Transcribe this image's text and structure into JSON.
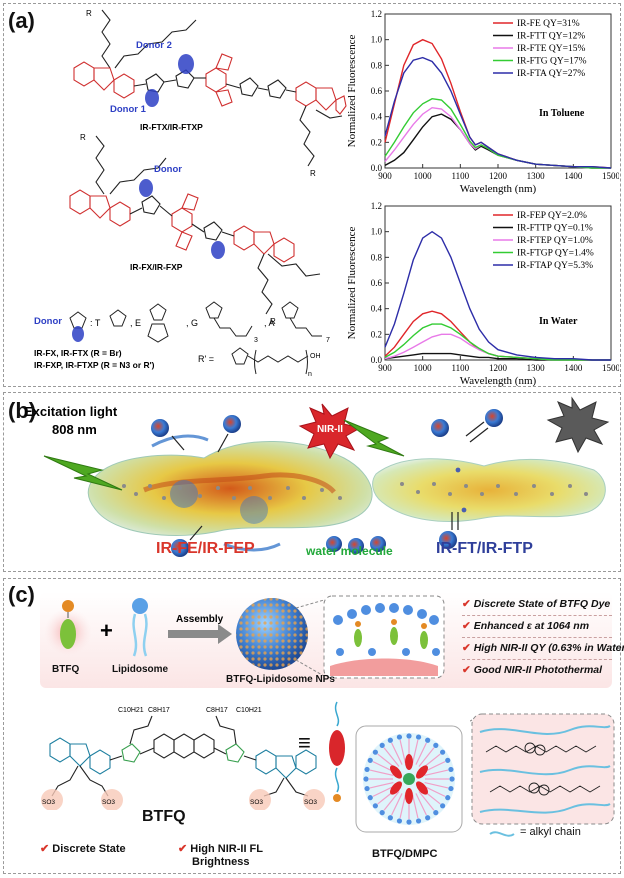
{
  "panel_a": {
    "label": "(a)",
    "struct1": {
      "donor2": "Donor 2",
      "donor1": "Donor 1",
      "name": "IR-FTX/IR-FTXP",
      "r_top": "R",
      "r_bottom": "R"
    },
    "struct2": {
      "donor": "Donor",
      "name": "IR-FX/IR-FXP",
      "r_top": "R",
      "r_bottom": "R"
    },
    "donor_legend": {
      "donor": "Donor",
      "t": ": T",
      "e": ", E",
      "g": ", G",
      "a": ", A",
      "sub3": "3",
      "sub7": "7"
    },
    "notes": {
      "line1": "IR-FX, IR-FTX (R = Br)",
      "line2": "IR-FXP, IR-FTXP (R = N3 or R')",
      "rprime": "R' =",
      "n": "n",
      "oh": "OH"
    }
  },
  "chart_data": [
    {
      "type": "line",
      "xlabel": "Wavelength (nm)",
      "ylabel": "Normalized  Fluorescence",
      "xlim": [
        900,
        1500
      ],
      "ylim": [
        0,
        1.2
      ],
      "xticks": [
        900,
        1000,
        1100,
        1200,
        1300,
        1400,
        1500
      ],
      "yticks": [
        "0.0",
        "0.2",
        "0.4",
        "0.6",
        "0.8",
        "1.0",
        "1.2"
      ],
      "annotation": "In Toluene",
      "legend_position": "top-right",
      "x": [
        900,
        925,
        950,
        975,
        1000,
        1025,
        1050,
        1075,
        1100,
        1125,
        1140,
        1155,
        1175,
        1200,
        1250,
        1300,
        1350,
        1400,
        1450,
        1500
      ],
      "series": [
        {
          "name": "IR-FE  QY=31%",
          "color": "#e0262a",
          "values": [
            0.2,
            0.5,
            0.8,
            0.96,
            1.0,
            0.97,
            0.85,
            0.66,
            0.44,
            0.24,
            0.18,
            0.2,
            0.16,
            0.11,
            0.06,
            0.03,
            0.02,
            0.01,
            0.01,
            0.0
          ]
        },
        {
          "name": "IR-FTT  QY=12%",
          "color": "#111111",
          "values": [
            0.02,
            0.06,
            0.12,
            0.22,
            0.32,
            0.4,
            0.42,
            0.38,
            0.3,
            0.19,
            0.14,
            0.17,
            0.14,
            0.1,
            0.06,
            0.03,
            0.02,
            0.01,
            0.0,
            0.0
          ]
        },
        {
          "name": "IR-FTE  QY=15%",
          "color": "#e87ae8",
          "values": [
            0.05,
            0.14,
            0.24,
            0.34,
            0.42,
            0.47,
            0.46,
            0.4,
            0.3,
            0.19,
            0.15,
            0.18,
            0.15,
            0.1,
            0.06,
            0.03,
            0.02,
            0.01,
            0.0,
            0.0
          ]
        },
        {
          "name": "IR-FTG  QY=17%",
          "color": "#33cc33",
          "values": [
            0.09,
            0.2,
            0.32,
            0.43,
            0.5,
            0.54,
            0.53,
            0.46,
            0.34,
            0.21,
            0.16,
            0.18,
            0.15,
            0.1,
            0.06,
            0.03,
            0.02,
            0.01,
            0.0,
            0.0
          ]
        },
        {
          "name": "IR-FTA  QY=27%",
          "color": "#2d2da8",
          "values": [
            0.25,
            0.52,
            0.74,
            0.84,
            0.86,
            0.83,
            0.74,
            0.6,
            0.42,
            0.24,
            0.18,
            0.2,
            0.16,
            0.11,
            0.06,
            0.03,
            0.02,
            0.01,
            0.01,
            0.0
          ]
        }
      ]
    },
    {
      "type": "line",
      "xlabel": "Wavelength (nm)",
      "ylabel": "Normalized  Fluorescence",
      "xlim": [
        900,
        1500
      ],
      "ylim": [
        0,
        1.2
      ],
      "xticks": [
        900,
        1000,
        1100,
        1200,
        1300,
        1400,
        1500
      ],
      "yticks": [
        "0.0",
        "0.2",
        "0.4",
        "0.6",
        "0.8",
        "1.0",
        "1.2"
      ],
      "annotation": "In Water",
      "legend_position": "top-right",
      "x": [
        900,
        925,
        950,
        975,
        1000,
        1025,
        1050,
        1075,
        1100,
        1125,
        1150,
        1175,
        1200,
        1250,
        1300,
        1350,
        1400,
        1450,
        1500
      ],
      "series": [
        {
          "name": "IR-FEP  QY=2.0%",
          "color": "#e0262a",
          "values": [
            0.03,
            0.1,
            0.2,
            0.3,
            0.36,
            0.38,
            0.36,
            0.3,
            0.22,
            0.14,
            0.08,
            0.05,
            0.03,
            0.02,
            0.01,
            0.01,
            0.0,
            0.0,
            0.0
          ]
        },
        {
          "name": "IR-FTTP  QY=0.1%",
          "color": "#111111",
          "values": [
            0.01,
            0.02,
            0.03,
            0.04,
            0.05,
            0.05,
            0.05,
            0.05,
            0.04,
            0.03,
            0.02,
            0.02,
            0.01,
            0.01,
            0.0,
            0.0,
            0.0,
            0.0,
            0.0
          ]
        },
        {
          "name": "IR-FTEP  QY=1.0%",
          "color": "#e87ae8",
          "values": [
            0.01,
            0.03,
            0.06,
            0.1,
            0.14,
            0.18,
            0.2,
            0.2,
            0.17,
            0.12,
            0.08,
            0.05,
            0.03,
            0.02,
            0.01,
            0.0,
            0.0,
            0.0,
            0.0
          ]
        },
        {
          "name": "IR-FTGP  QY=1.4%",
          "color": "#33cc33",
          "values": [
            0.02,
            0.06,
            0.12,
            0.19,
            0.25,
            0.28,
            0.28,
            0.25,
            0.2,
            0.14,
            0.09,
            0.05,
            0.03,
            0.02,
            0.01,
            0.0,
            0.0,
            0.0,
            0.0
          ]
        },
        {
          "name": "IR-FTAP  QY=5.3%",
          "color": "#2d2da8",
          "values": [
            0.1,
            0.28,
            0.52,
            0.78,
            0.95,
            1.0,
            0.95,
            0.8,
            0.6,
            0.4,
            0.24,
            0.14,
            0.08,
            0.04,
            0.02,
            0.01,
            0.01,
            0.0,
            0.0
          ]
        }
      ]
    }
  ],
  "panel_b": {
    "label": "(b)",
    "excitation": "Excitation light",
    "wavelength": "808 nm",
    "nir_burst": "NIR-II",
    "left_name": "IR-FE/IR-FEP",
    "water": "water molecule",
    "right_name": "IR-FT/IR-FTP",
    "colors": {
      "left_name": "#d9362b",
      "water": "#22a83a",
      "right_name": "#2f3f9a"
    }
  },
  "panel_c": {
    "label": "(c)",
    "btfq_label": "BTFQ",
    "lipidosome_label": "Lipidosome",
    "plus": "+",
    "assembly": "Assembly",
    "nps_label": "BTFQ-Lipidosome NPs",
    "checks": [
      "Discrete State of BTFQ Dye",
      "Enhanced ε at 1064 nm",
      "High NIR-II QY (0.63% in Water)",
      "Good NIR-II Photothermal"
    ],
    "chain1": "C10H21",
    "chain2": "C8H17",
    "chain3": "C8H17",
    "chain4": "C10H21",
    "so3": "SO3",
    "equiv": "≡",
    "btfq_big": "BTFQ",
    "bottom_checks": [
      "Discrete State",
      "High NIR-II FL",
      "Brightness"
    ],
    "dmpc_label": "BTFQ/DMPC",
    "alkyl_legend": "= alkyl chain",
    "check_color": "#d9362b"
  }
}
